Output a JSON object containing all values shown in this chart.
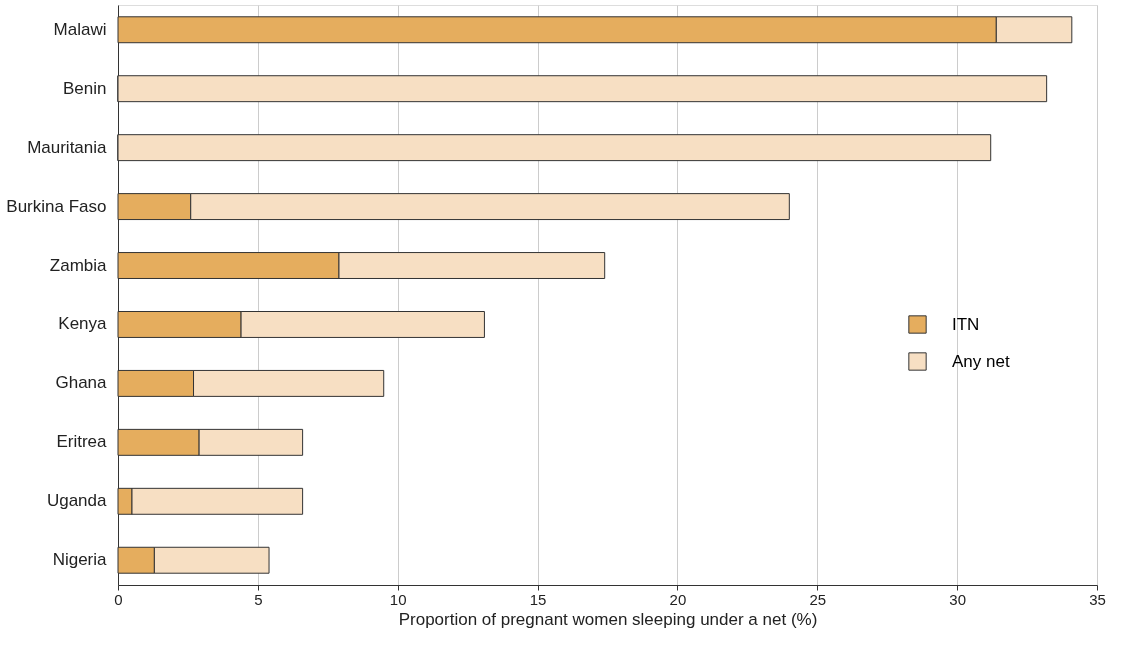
{
  "chart_data": {
    "type": "bar",
    "orientation": "horizontal",
    "stacked": true,
    "xlabel": "Proportion of pregnant women sleeping under a net (%)",
    "categories": [
      "Malawi",
      "Benin",
      "Mauritania",
      "Burkina Faso",
      "Zambia",
      "Kenya",
      "Ghana",
      "Eritrea",
      "Uganda",
      "Nigeria"
    ],
    "series": [
      {
        "name": "ITN",
        "color": "#e5ad5e",
        "values": [
          31.4,
          0,
          0,
          2.6,
          7.9,
          4.4,
          2.7,
          2.9,
          0.5,
          1.3
        ]
      },
      {
        "name": "Any net",
        "color": "#f7dfc3",
        "values": [
          2.7,
          33.2,
          31.2,
          21.4,
          9.5,
          8.7,
          6.8,
          3.7,
          6.1,
          4.1
        ]
      }
    ],
    "xlim": [
      0,
      35
    ],
    "xticks": [
      0,
      5,
      10,
      15,
      20,
      25,
      30,
      35
    ],
    "grid": "x",
    "legend": "right"
  }
}
